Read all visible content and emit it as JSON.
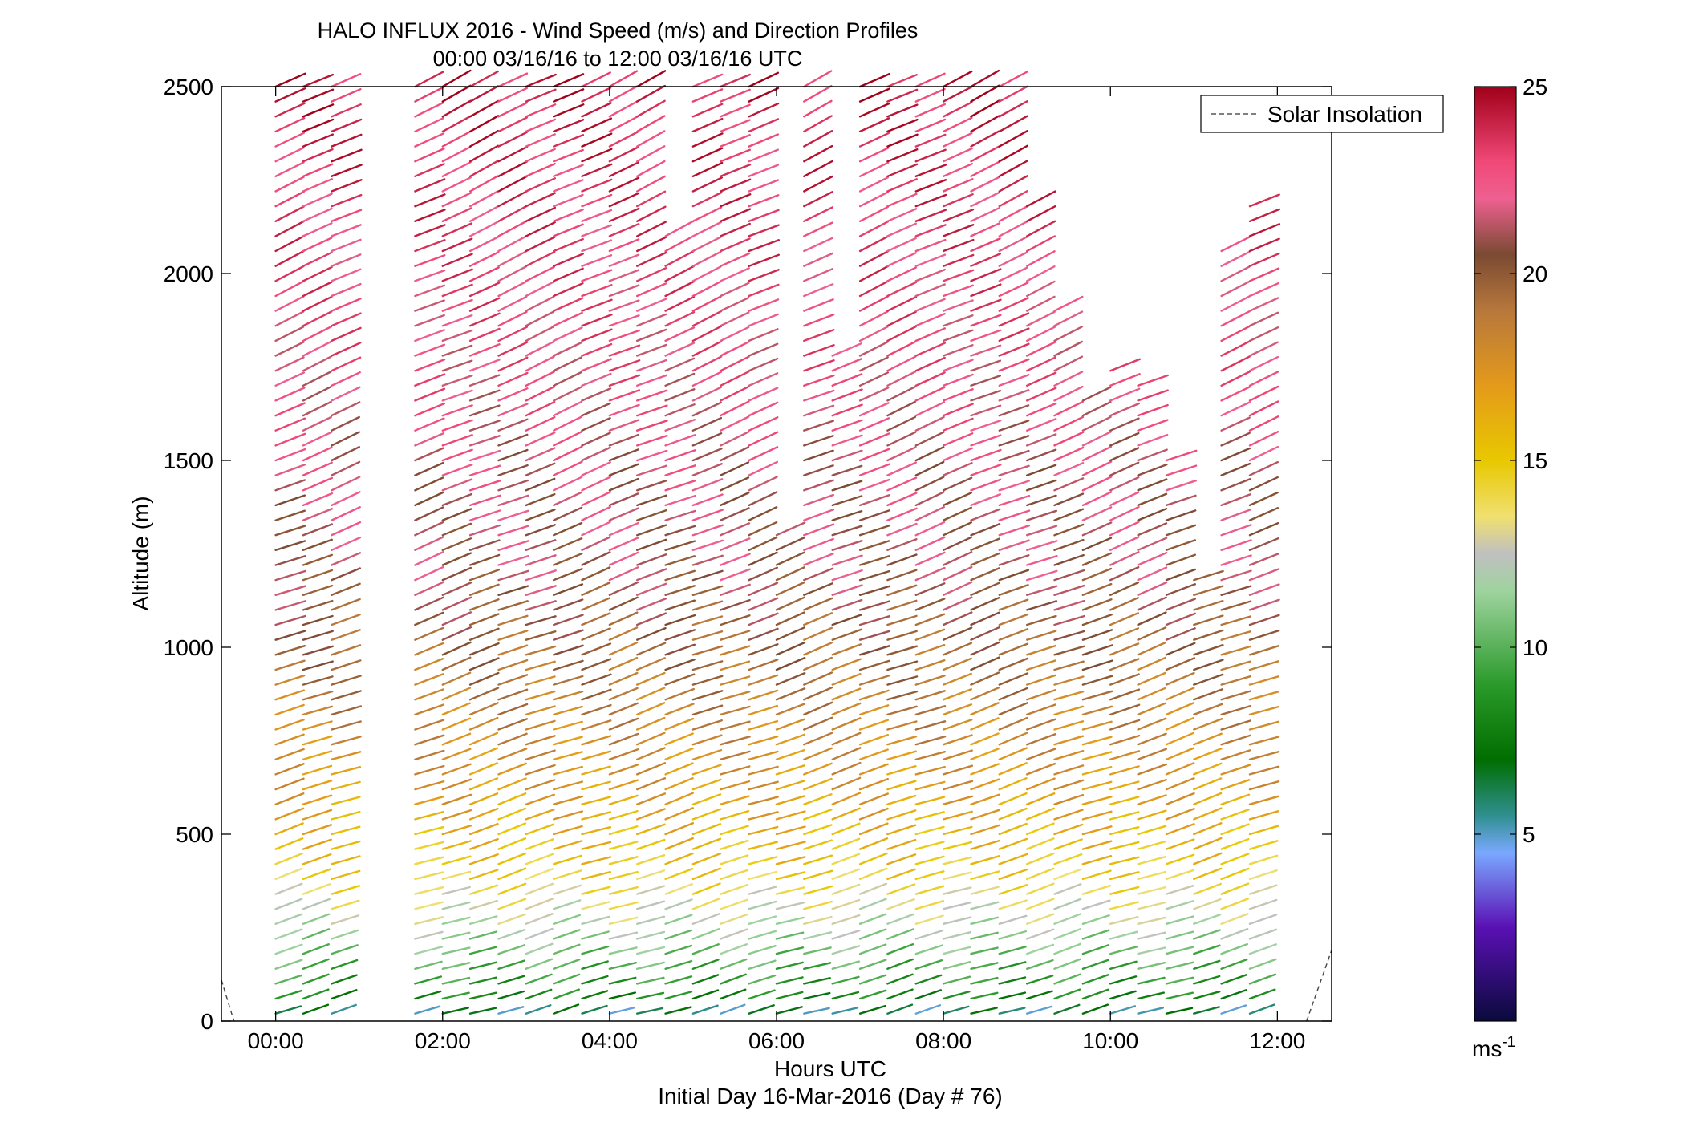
{
  "chart_data": {
    "type": "wind_barb_profile",
    "title": "HALO INFLUX 2016 - Wind Speed (m/s) and Direction Profiles",
    "subtitle": "00:00 03/16/16 to 12:00 03/16/16  UTC",
    "xlabel": "Hours UTC",
    "xlabel2": "Initial Day 16-Mar-2016 (Day # 76)",
    "ylabel": "Altitude (m)",
    "x_unit": "hours",
    "xlim": [
      -0.65,
      12.65
    ],
    "ylim": [
      0,
      2500
    ],
    "x_ticks": [
      {
        "value": 0,
        "label": "00:00"
      },
      {
        "value": 2,
        "label": "02:00"
      },
      {
        "value": 4,
        "label": "04:00"
      },
      {
        "value": 6,
        "label": "06:00"
      },
      {
        "value": 8,
        "label": "08:00"
      },
      {
        "value": 10,
        "label": "10:00"
      },
      {
        "value": 12,
        "label": "12:00"
      }
    ],
    "y_ticks": [
      {
        "value": 0,
        "label": "0"
      },
      {
        "value": 500,
        "label": "500"
      },
      {
        "value": 1000,
        "label": "1000"
      },
      {
        "value": 1500,
        "label": "1500"
      },
      {
        "value": 2000,
        "label": "2000"
      },
      {
        "value": 2500,
        "label": "2500"
      }
    ],
    "legend": {
      "entries": [
        "Solar Insolation"
      ],
      "placement": "top-right"
    },
    "colorbar": {
      "range": [
        0,
        25
      ],
      "ticks": [
        {
          "value": 5,
          "label": "5"
        },
        {
          "value": 10,
          "label": "10"
        },
        {
          "value": 15,
          "label": "15"
        },
        {
          "value": 20,
          "label": "20"
        },
        {
          "value": 25,
          "label": "25"
        }
      ],
      "unit_base": "ms",
      "unit_exp": "-1",
      "stops": [
        {
          "v": 0.0,
          "color": "#0a0a3c"
        },
        {
          "v": 2.5,
          "color": "#5a10b4"
        },
        {
          "v": 4.5,
          "color": "#7aa8ff"
        },
        {
          "v": 5.5,
          "color": "#2f8f8f"
        },
        {
          "v": 7.0,
          "color": "#006e00"
        },
        {
          "v": 9.0,
          "color": "#2a9a2a"
        },
        {
          "v": 11.5,
          "color": "#9ed39e"
        },
        {
          "v": 12.5,
          "color": "#c0c0c0"
        },
        {
          "v": 13.5,
          "color": "#f0e070"
        },
        {
          "v": 15.0,
          "color": "#e8c800"
        },
        {
          "v": 17.0,
          "color": "#e49a1a"
        },
        {
          "v": 19.0,
          "color": "#b8783c"
        },
        {
          "v": 20.5,
          "color": "#7a4a32"
        },
        {
          "v": 22.0,
          "color": "#ee6090"
        },
        {
          "v": 23.0,
          "color": "#f04878"
        },
        {
          "v": 25.0,
          "color": "#a00018"
        }
      ]
    },
    "solar_insolation": [
      {
        "x": [
          -0.65,
          -0.5
        ],
        "y": [
          110,
          0
        ]
      },
      {
        "x": [
          12.35,
          12.65
        ],
        "y": [
          0,
          190
        ]
      }
    ],
    "profiles_hours": [
      0.0,
      0.33,
      0.67,
      1.67,
      2.0,
      2.33,
      2.67,
      3.0,
      3.33,
      3.67,
      4.0,
      4.33,
      4.67,
      5.0,
      5.33,
      5.67,
      6.0,
      6.33,
      6.67,
      7.0,
      7.33,
      7.67,
      8.0,
      8.33,
      8.67,
      9.0,
      9.33,
      9.67,
      10.0,
      10.33,
      10.67,
      11.0,
      11.33,
      11.67
    ],
    "profile_tops_m": [
      2500,
      2500,
      2500,
      2500,
      2500,
      2500,
      2500,
      2500,
      2500,
      2500,
      2500,
      2500,
      2100,
      2500,
      2500,
      2500,
      1330,
      2500,
      1780,
      2500,
      2500,
      2500,
      2500,
      2500,
      2500,
      2180,
      1900,
      1660,
      1740,
      1700,
      1510,
      1210,
      2080,
      2180
    ],
    "barb_altitude_step_m": 40,
    "speed_by_altitude_m_s": [
      {
        "z": 0,
        "v": 5
      },
      {
        "z": 60,
        "v": 8
      },
      {
        "z": 150,
        "v": 10
      },
      {
        "z": 250,
        "v": 12
      },
      {
        "z": 400,
        "v": 15
      },
      {
        "z": 600,
        "v": 17
      },
      {
        "z": 900,
        "v": 19
      },
      {
        "z": 1200,
        "v": 21
      },
      {
        "z": 1800,
        "v": 22.5
      },
      {
        "z": 2500,
        "v": 24
      }
    ],
    "direction_note": "wind from the northwest, turning slightly clockwise with height"
  }
}
